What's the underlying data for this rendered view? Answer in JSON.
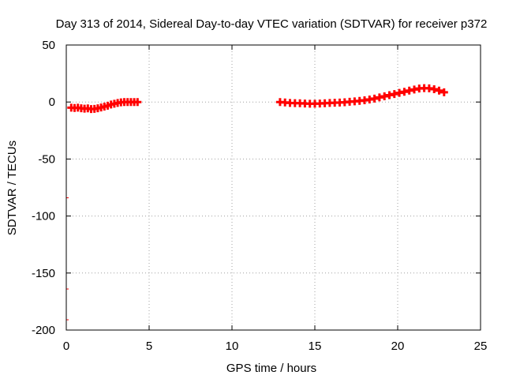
{
  "chart_data": {
    "type": "scatter",
    "title": "Day 313 of 2014, Sidereal Day-to-day VTEC variation (SDTVAR) for receiver p372",
    "xlabel": "GPS time / hours",
    "ylabel": "SDTVAR / TECUs",
    "xlim": [
      0,
      25
    ],
    "ylim": [
      -200,
      50
    ],
    "xticks": [
      0,
      5,
      10,
      15,
      20,
      25
    ],
    "yticks": [
      -200,
      -150,
      -100,
      -50,
      0,
      50
    ],
    "grid": true,
    "series": [
      {
        "name": "SDTVAR",
        "color": "#ff0000",
        "points": [
          [
            0.3,
            -5.0
          ],
          [
            0.5,
            -5.2
          ],
          [
            0.7,
            -5.0
          ],
          [
            0.9,
            -5.5
          ],
          [
            1.1,
            -5.8
          ],
          [
            1.3,
            -5.6
          ],
          [
            1.5,
            -6.2
          ],
          [
            1.7,
            -6.0
          ],
          [
            1.9,
            -5.5
          ],
          [
            2.1,
            -4.8
          ],
          [
            2.3,
            -4.0
          ],
          [
            2.5,
            -3.2
          ],
          [
            2.7,
            -2.2
          ],
          [
            2.9,
            -1.5
          ],
          [
            3.1,
            -0.8
          ],
          [
            3.3,
            -0.3
          ],
          [
            3.5,
            0.0
          ],
          [
            3.7,
            0.0
          ],
          [
            3.9,
            0.0
          ],
          [
            4.1,
            0.0
          ],
          [
            4.3,
            0.0
          ],
          [
            12.9,
            0.0
          ],
          [
            13.2,
            -0.4
          ],
          [
            13.5,
            -0.8
          ],
          [
            13.8,
            -1.0
          ],
          [
            14.1,
            -1.1
          ],
          [
            14.4,
            -1.3
          ],
          [
            14.7,
            -1.5
          ],
          [
            15.0,
            -1.5
          ],
          [
            15.3,
            -1.3
          ],
          [
            15.6,
            -1.1
          ],
          [
            15.9,
            -0.8
          ],
          [
            16.2,
            -0.6
          ],
          [
            16.5,
            -0.5
          ],
          [
            16.8,
            -0.2
          ],
          [
            17.1,
            0.2
          ],
          [
            17.4,
            0.6
          ],
          [
            17.7,
            1.0
          ],
          [
            18.0,
            1.5
          ],
          [
            18.3,
            2.2
          ],
          [
            18.6,
            3.0
          ],
          [
            18.9,
            4.0
          ],
          [
            19.2,
            5.0
          ],
          [
            19.5,
            6.0
          ],
          [
            19.8,
            7.0
          ],
          [
            20.1,
            8.0
          ],
          [
            20.4,
            9.0
          ],
          [
            20.7,
            10.0
          ],
          [
            21.0,
            11.0
          ],
          [
            21.3,
            11.8
          ],
          [
            21.6,
            12.2
          ],
          [
            21.9,
            12.0
          ],
          [
            22.2,
            11.2
          ],
          [
            22.5,
            10.0
          ],
          [
            22.8,
            8.5
          ]
        ]
      }
    ],
    "edge_marks": [
      {
        "x": 0,
        "y": -84
      },
      {
        "x": 0,
        "y": -164
      },
      {
        "x": 0,
        "y": -191
      }
    ]
  }
}
